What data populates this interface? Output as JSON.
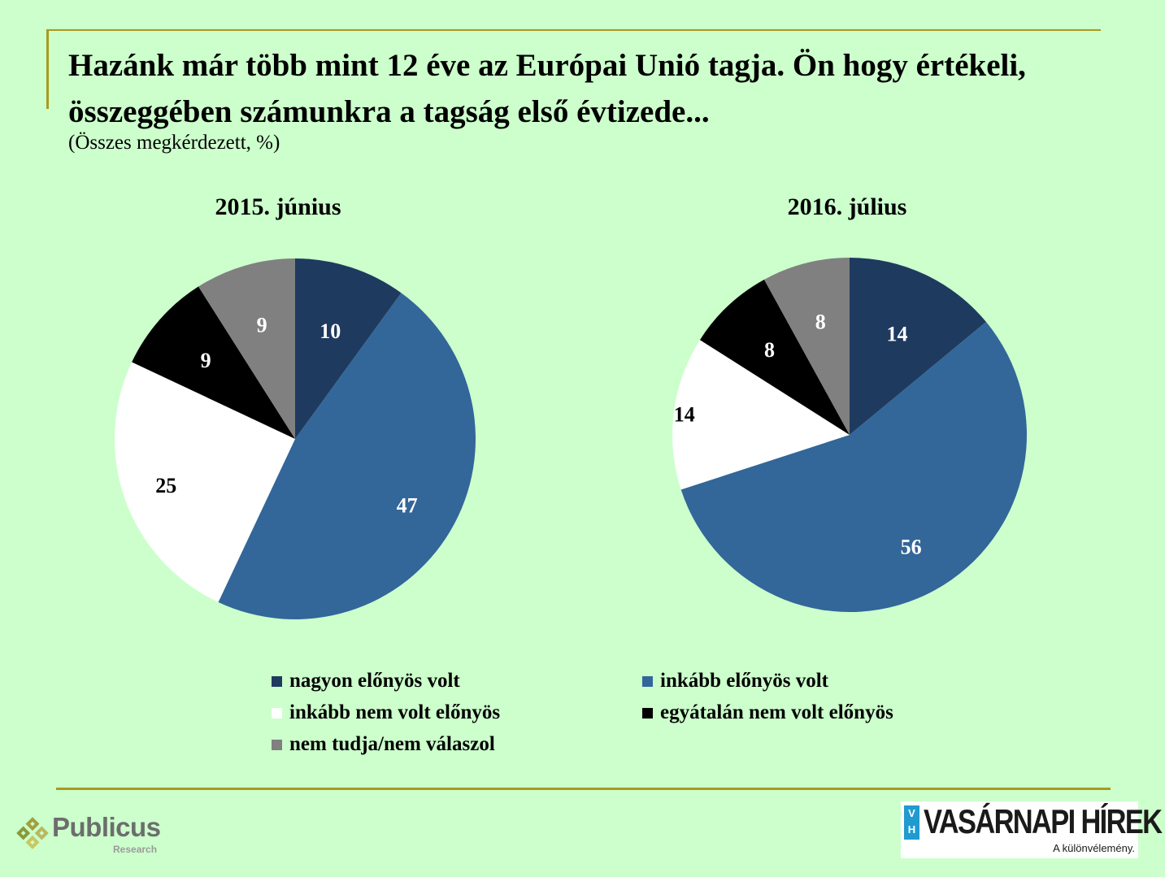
{
  "header": {
    "title": "Hazánk már több mint 12 éve az Európai Unió tagja. Ön hogy értékeli, összeggében számunkra a tagság első évtizede...",
    "subtitle": "(Összes megkérdezett, %)"
  },
  "chart_data": [
    {
      "type": "pie",
      "title": "2015. június",
      "categories": [
        "nagyon előnyös volt",
        "inkább előnyös volt",
        "inkább nem volt előnyös",
        "egyátalán nem volt előnyös",
        "nem tudja/nem válaszol"
      ],
      "values": [
        10,
        47,
        25,
        9,
        9
      ],
      "colors": [
        "#1f3a5f",
        "#336699",
        "#ffffff",
        "#000000",
        "#808080"
      ],
      "label_colors": [
        "#ffffff",
        "#ffffff",
        "#000000",
        "#ffffff",
        "#ffffff"
      ]
    },
    {
      "type": "pie",
      "title": "2016. július",
      "categories": [
        "nagyon előnyös volt",
        "inkább előnyös volt",
        "inkább nem volt előnyös",
        "egyátalán nem volt előnyös",
        "nem tudja/nem válaszol"
      ],
      "values": [
        14,
        56,
        14,
        8,
        8
      ],
      "colors": [
        "#1f3a5f",
        "#336699",
        "#ffffff",
        "#000000",
        "#808080"
      ],
      "label_colors": [
        "#ffffff",
        "#ffffff",
        "#000000",
        "#ffffff",
        "#ffffff"
      ]
    }
  ],
  "legend": {
    "items": [
      {
        "label": "nagyon előnyös volt",
        "color": "#1f3a5f"
      },
      {
        "label": "inkább előnyös volt",
        "color": "#336699"
      },
      {
        "label": "inkább nem volt előnyös",
        "color": "#ffffff"
      },
      {
        "label": "egyátalán nem volt előnyös",
        "color": "#000000"
      },
      {
        "label": "nem tudja/nem válaszol",
        "color": "#808080"
      }
    ]
  },
  "footer": {
    "publicus_name": "Publicus",
    "publicus_sub": "Research",
    "vh_badge_top": "V",
    "vh_badge_bottom": "H",
    "vh_name": "VASÁRNAPI HÍREK",
    "vh_tagline": "A különvélemény."
  },
  "colors": {
    "background": "#ccffcc",
    "accent_line": "#a89a1e"
  }
}
